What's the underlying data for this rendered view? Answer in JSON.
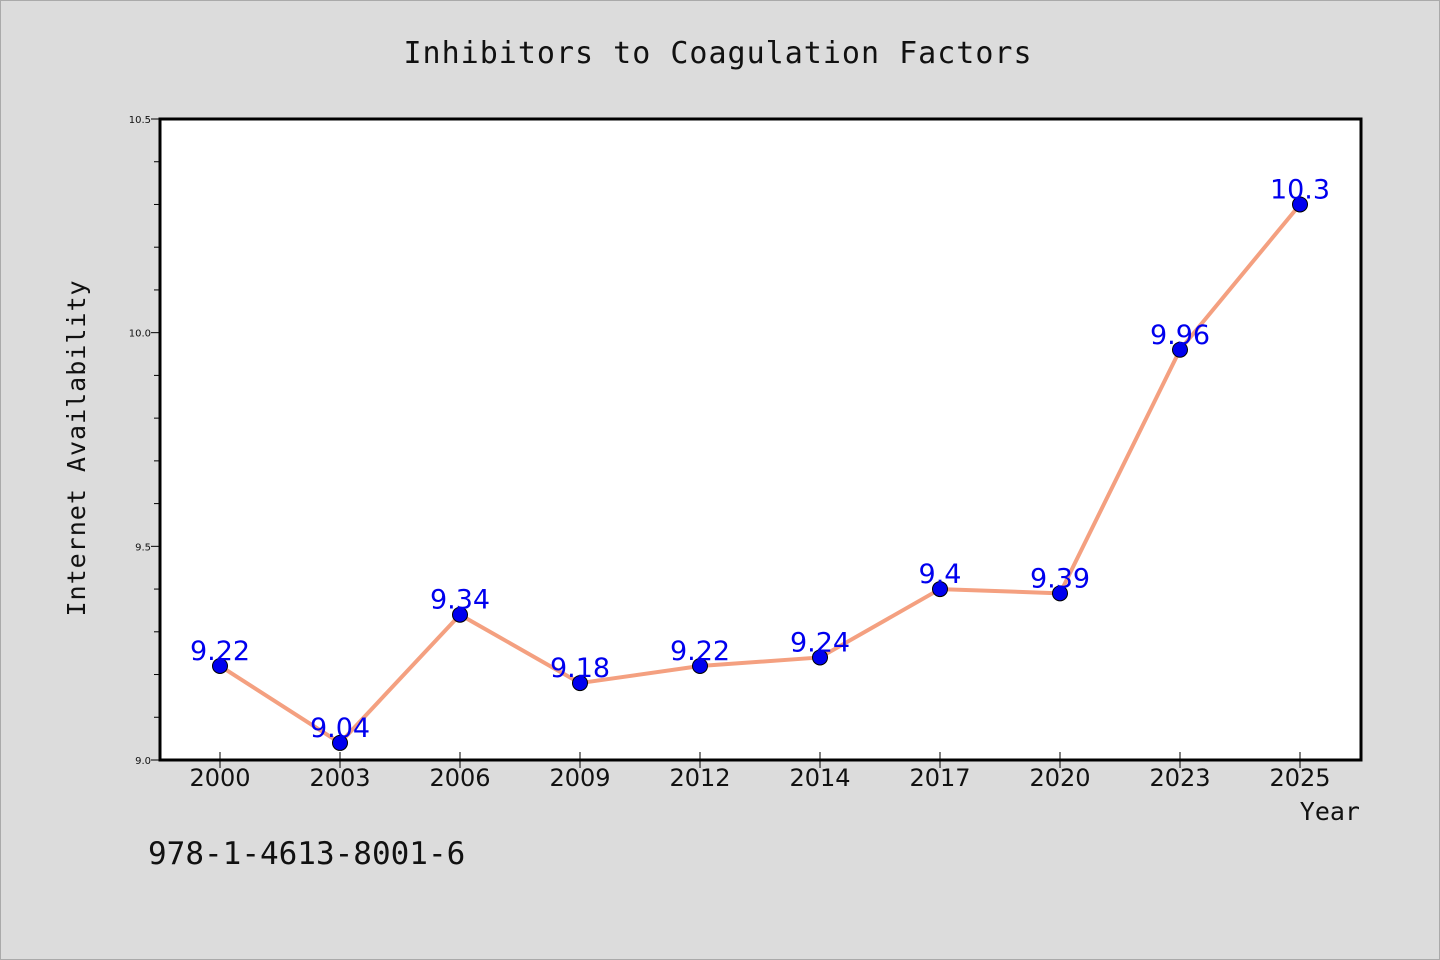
{
  "chart_data": {
    "type": "line",
    "title": "Inhibitors to Coagulation Factors",
    "xlabel": "Year",
    "ylabel": "Internet Availability",
    "categories": [
      "2000",
      "2003",
      "2006",
      "2009",
      "2012",
      "2014",
      "2017",
      "2020",
      "2023",
      "2025"
    ],
    "series": [
      {
        "values": [
          9.22,
          9.04,
          9.34,
          9.18,
          9.22,
          9.24,
          9.4,
          9.39,
          9.96,
          10.3
        ],
        "labels": [
          "9.22",
          "9.04",
          "9.34",
          "9.18",
          "9.22",
          "9.24",
          "9.4",
          "9.39",
          "9.96",
          "10.3"
        ],
        "line_color": "#f4a080",
        "marker_color": "#0000ee"
      }
    ],
    "ylim": [
      9.0,
      10.5
    ],
    "y_major_ticks": [
      "9.0",
      "9.5",
      "10.0",
      "10.5"
    ],
    "y_minor_step": 0.1,
    "grid": false,
    "legend": "none",
    "annotation": "978-1-4613-8001-6",
    "label_color": "#0000ee",
    "background_color": "#dcdcdc",
    "plot_background": "#ffffff"
  }
}
